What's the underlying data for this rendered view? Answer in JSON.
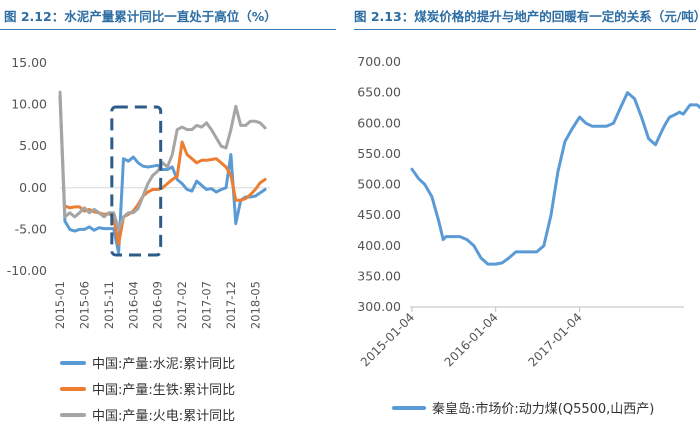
{
  "panels": [
    {
      "title": "图 2.12：水泥产量累计同比一直处于高位（%）"
    },
    {
      "title": "图 2.13：煤炭价格的提升与地产的回暖有一定的关系（元/吨）"
    }
  ],
  "colors": {
    "title": "#2c6da3",
    "blue": "#5b9bd5",
    "orange": "#ed7d31",
    "gray": "#a5a5a5",
    "box": "#2e5c8a",
    "divider": "#3c78b4"
  },
  "chart_data": [
    {
      "type": "line",
      "title": "",
      "ylim": [
        -10,
        15
      ],
      "yticks": [
        -10,
        -5,
        0,
        5,
        10,
        15
      ],
      "ytick_labels": [
        "-10.00",
        "-5.00",
        "0.00",
        "5.00",
        "10.00",
        "15.00"
      ],
      "xlim": [
        "2015-01",
        "2018-08"
      ],
      "xticks": [
        "2015-01",
        "2015-06",
        "2015-11",
        "2016-04",
        "2016-09",
        "2017-02",
        "2017-07",
        "2017-12",
        "2018-05"
      ],
      "grid": false,
      "legend_position": "bottom",
      "annotation": "dashed-box 2015-11 to 2016-09",
      "series": [
        {
          "name": "中国:产量:水泥:累计同比",
          "color": "#5b9bd5",
          "x": [
            "2015-01",
            "2015-02",
            "2015-03",
            "2015-04",
            "2015-05",
            "2015-06",
            "2015-07",
            "2015-08",
            "2015-09",
            "2015-10",
            "2015-11",
            "2015-12",
            "2016-01",
            "2016-02",
            "2016-03",
            "2016-04",
            "2016-05",
            "2016-06",
            "2016-07",
            "2016-08",
            "2016-09",
            "2016-10",
            "2016-11",
            "2016-12",
            "2017-01",
            "2017-02",
            "2017-03",
            "2017-04",
            "2017-05",
            "2017-06",
            "2017-07",
            "2017-08",
            "2017-09",
            "2017-10",
            "2017-11",
            "2017-12",
            "2018-01",
            "2018-02",
            "2018-03",
            "2018-04",
            "2018-05",
            "2018-06",
            "2018-07"
          ],
          "values": [
            11.0,
            -4.0,
            -5.0,
            -5.2,
            -5.0,
            -5.0,
            -4.7,
            -5.1,
            -4.8,
            -4.9,
            -4.9,
            -4.9,
            -7.8,
            3.5,
            3.2,
            3.7,
            3.0,
            2.6,
            2.5,
            2.6,
            2.7,
            2.2,
            2.2,
            2.5,
            1.0,
            0.5,
            -0.2,
            -0.4,
            0.8,
            0.3,
            -0.2,
            -0.1,
            -0.5,
            -0.2,
            0.0,
            4.0,
            -4.3,
            -1.5,
            -1.1,
            -1.1,
            -1.0,
            -0.6,
            -0.2
          ]
        },
        {
          "name": "中国:产量:生铁:累计同比",
          "color": "#ed7d31",
          "x": [
            "2015-02",
            "2015-03",
            "2015-04",
            "2015-05",
            "2015-06",
            "2015-07",
            "2015-08",
            "2015-09",
            "2015-10",
            "2015-11",
            "2015-12",
            "2016-01",
            "2016-02",
            "2016-03",
            "2016-04",
            "2016-05",
            "2016-06",
            "2016-07",
            "2016-08",
            "2016-09",
            "2016-10",
            "2016-11",
            "2016-12",
            "2017-01",
            "2017-02",
            "2017-03",
            "2017-04",
            "2017-05",
            "2017-06",
            "2017-07",
            "2017-08",
            "2017-09",
            "2017-10",
            "2017-11",
            "2017-12",
            "2018-01",
            "2018-02",
            "2018-03",
            "2018-04",
            "2018-05",
            "2018-06",
            "2018-07"
          ],
          "values": [
            -2.2,
            -2.4,
            -2.3,
            -2.3,
            -2.8,
            -2.6,
            -2.9,
            -3.0,
            -3.2,
            -3.1,
            -3.5,
            -6.8,
            -3.5,
            -3.2,
            -2.8,
            -2.0,
            -1.0,
            -0.5,
            -0.2,
            -0.2,
            0.0,
            0.5,
            1.0,
            1.4,
            5.5,
            4.0,
            3.5,
            3.0,
            3.3,
            3.3,
            3.4,
            3.5,
            3.0,
            2.5,
            1.5,
            -1.5,
            -1.5,
            -1.3,
            -0.8,
            -0.2,
            0.6,
            1.0
          ]
        },
        {
          "name": "中国:产量:火电:累计同比",
          "color": "#a5a5a5",
          "x": [
            "2015-01",
            "2015-02",
            "2015-03",
            "2015-04",
            "2015-05",
            "2015-06",
            "2015-07",
            "2015-08",
            "2015-09",
            "2015-10",
            "2015-11",
            "2015-12",
            "2016-01",
            "2016-02",
            "2016-03",
            "2016-04",
            "2016-05",
            "2016-06",
            "2016-07",
            "2016-08",
            "2016-09",
            "2016-10",
            "2016-11",
            "2016-12",
            "2017-01",
            "2017-02",
            "2017-03",
            "2017-04",
            "2017-05",
            "2017-06",
            "2017-07",
            "2017-08",
            "2017-09",
            "2017-10",
            "2017-11",
            "2017-12",
            "2018-01",
            "2018-02",
            "2018-03",
            "2018-04",
            "2018-05",
            "2018-06",
            "2018-07"
          ],
          "values": [
            11.5,
            -3.5,
            -3.0,
            -3.5,
            -3.0,
            -2.4,
            -3.0,
            -2.6,
            -3.0,
            -3.5,
            -3.0,
            -3.0,
            -5.0,
            -3.5,
            -3.0,
            -3.0,
            -2.5,
            -1.0,
            0.5,
            1.5,
            2.0,
            3.0,
            2.5,
            4.0,
            7.0,
            7.3,
            7.0,
            7.0,
            7.5,
            7.3,
            7.8,
            7.0,
            6.0,
            5.0,
            4.8,
            7.0,
            9.8,
            7.5,
            7.5,
            8.0,
            8.0,
            7.8,
            7.2
          ]
        }
      ]
    },
    {
      "type": "line",
      "title": "",
      "ylim": [
        300,
        700
      ],
      "yticks": [
        300,
        350,
        400,
        450,
        500,
        550,
        600,
        650,
        700
      ],
      "ytick_labels": [
        "300.00",
        "350.00",
        "400.00",
        "450.00",
        "500.00",
        "550.00",
        "600.00",
        "650.00",
        "700.00"
      ],
      "xlim": [
        "2015-01-04",
        "2018-07-31"
      ],
      "xticks": [
        "2015-01-04",
        "2016-01-04",
        "2017-01-04"
      ],
      "grid": false,
      "legend_position": "bottom",
      "series": [
        {
          "name": "秦皇岛:市场价:动力煤(Q5500,山西产)",
          "color": "#5b9bd5",
          "x": [
            "2015-01-04",
            "2015-02-01",
            "2015-03-01",
            "2015-04-01",
            "2015-05-01",
            "2015-05-20",
            "2015-06-01",
            "2015-07-01",
            "2015-08-01",
            "2015-09-01",
            "2015-10-01",
            "2015-11-01",
            "2015-12-01",
            "2016-01-04",
            "2016-02-01",
            "2016-03-01",
            "2016-04-01",
            "2016-05-01",
            "2016-06-01",
            "2016-07-01",
            "2016-08-01",
            "2016-09-01",
            "2016-10-01",
            "2016-11-01",
            "2016-12-01",
            "2017-01-04",
            "2017-02-01",
            "2017-03-01",
            "2017-04-01",
            "2017-04-15",
            "2017-05-01",
            "2017-06-01",
            "2017-07-01",
            "2017-08-01",
            "2017-09-01",
            "2017-10-01",
            "2017-11-01",
            "2017-12-01",
            "2018-01-01",
            "2018-01-15",
            "2018-02-01",
            "2018-03-01",
            "2018-03-15",
            "2018-04-01",
            "2018-05-01",
            "2018-06-01",
            "2018-07-01",
            "2018-07-31"
          ],
          "values": [
            525,
            510,
            500,
            480,
            440,
            410,
            415,
            415,
            415,
            410,
            400,
            380,
            370,
            370,
            372,
            380,
            390,
            390,
            390,
            390,
            400,
            450,
            520,
            570,
            590,
            610,
            600,
            595,
            595,
            595,
            595,
            600,
            625,
            650,
            640,
            610,
            575,
            565,
            590,
            600,
            610,
            615,
            618,
            615,
            630,
            630,
            620,
            630
          ]
        }
      ]
    }
  ]
}
